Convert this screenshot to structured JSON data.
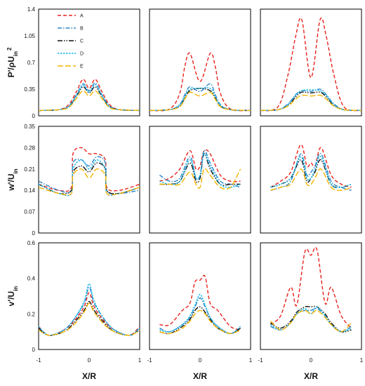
{
  "series_styles": [
    {
      "name": "A",
      "color": "#e8211b",
      "dash": "5,3"
    },
    {
      "name": "B",
      "color": "#2e86c8",
      "dash": "6,2,1.5,2"
    },
    {
      "name": "C",
      "color": "#111111",
      "dash": "7,2,1.5,2,1.5,2"
    },
    {
      "name": "D",
      "color": "#17b7e8",
      "dash": "2.5,1.5"
    },
    {
      "name": "E",
      "color": "#f5b400",
      "dash": "8,3"
    }
  ],
  "rows": [
    {
      "ylabel": "P'/ρU",
      "ylabel_sub": "in",
      "ylabel_sup": "2",
      "yticks": [
        "0",
        "0.35",
        "0.7",
        "1.05",
        "1.4"
      ],
      "ylim": [
        0,
        1.4
      ]
    },
    {
      "ylabel": "w'/U",
      "ylabel_sub": "in",
      "ylabel_sup": "",
      "yticks": [
        "0",
        "0.07",
        "0.14",
        "0.21",
        "0.28",
        "0.35"
      ],
      "ylim": [
        0,
        0.35
      ]
    },
    {
      "ylabel": "v'/U",
      "ylabel_sub": "in",
      "ylabel_sup": "",
      "yticks": [
        "0",
        "0.2",
        "0.4",
        "0.6"
      ],
      "ylim": [
        0,
        0.6
      ]
    }
  ],
  "xaxis": {
    "label": "X/R",
    "ticks": [
      "-1",
      "0",
      "1"
    ],
    "xlim": [
      -1,
      1
    ]
  },
  "chart_data": [
    {
      "type": "line",
      "row": 1,
      "col": 1,
      "xlim": [
        -1,
        1
      ],
      "ylim": [
        0,
        1.4
      ],
      "x": [
        -1,
        -0.6,
        -0.4,
        -0.25,
        -0.12,
        0,
        0.12,
        0.25,
        0.4,
        0.6,
        1
      ],
      "series": [
        {
          "name": "A",
          "values": [
            0.07,
            0.08,
            0.15,
            0.32,
            0.48,
            0.36,
            0.48,
            0.32,
            0.15,
            0.08,
            0.07
          ]
        },
        {
          "name": "B",
          "values": [
            0.07,
            0.08,
            0.13,
            0.28,
            0.42,
            0.33,
            0.43,
            0.28,
            0.13,
            0.08,
            0.07
          ]
        },
        {
          "name": "C",
          "values": [
            0.07,
            0.08,
            0.12,
            0.26,
            0.38,
            0.3,
            0.38,
            0.26,
            0.12,
            0.08,
            0.07
          ]
        },
        {
          "name": "D",
          "values": [
            0.07,
            0.08,
            0.12,
            0.27,
            0.4,
            0.31,
            0.41,
            0.27,
            0.12,
            0.08,
            0.07
          ]
        },
        {
          "name": "E",
          "values": [
            0.07,
            0.08,
            0.11,
            0.23,
            0.33,
            0.26,
            0.33,
            0.23,
            0.11,
            0.08,
            0.07
          ]
        }
      ]
    },
    {
      "type": "line",
      "row": 1,
      "col": 2,
      "xlim": [
        -1,
        1
      ],
      "ylim": [
        0,
        1.4
      ],
      "x": [
        -1,
        -0.6,
        -0.4,
        -0.3,
        -0.2,
        0,
        0.2,
        0.3,
        0.4,
        0.6,
        1
      ],
      "series": [
        {
          "name": "A",
          "values": [
            0.07,
            0.09,
            0.3,
            0.65,
            0.82,
            0.45,
            0.82,
            0.65,
            0.3,
            0.09,
            0.07
          ]
        },
        {
          "name": "B",
          "values": [
            0.07,
            0.08,
            0.15,
            0.28,
            0.38,
            0.32,
            0.42,
            0.28,
            0.15,
            0.08,
            0.07
          ]
        },
        {
          "name": "C",
          "values": [
            0.07,
            0.08,
            0.13,
            0.24,
            0.33,
            0.36,
            0.33,
            0.24,
            0.13,
            0.08,
            0.07
          ]
        },
        {
          "name": "D",
          "values": [
            0.07,
            0.08,
            0.14,
            0.26,
            0.35,
            0.36,
            0.36,
            0.26,
            0.14,
            0.08,
            0.07
          ]
        },
        {
          "name": "E",
          "values": [
            0.07,
            0.08,
            0.12,
            0.22,
            0.31,
            0.26,
            0.31,
            0.22,
            0.12,
            0.08,
            0.07
          ]
        }
      ]
    },
    {
      "type": "line",
      "row": 1,
      "col": 3,
      "xlim": [
        -1,
        1
      ],
      "ylim": [
        0,
        1.4
      ],
      "x": [
        -1,
        -0.65,
        -0.45,
        -0.3,
        -0.18,
        0,
        0.18,
        0.3,
        0.45,
        0.65,
        1
      ],
      "series": [
        {
          "name": "A",
          "values": [
            0.07,
            0.12,
            0.55,
            1.05,
            1.26,
            0.5,
            1.26,
            1.05,
            0.55,
            0.12,
            0.07
          ]
        },
        {
          "name": "B",
          "values": [
            0.07,
            0.08,
            0.16,
            0.28,
            0.33,
            0.32,
            0.35,
            0.28,
            0.16,
            0.08,
            0.07
          ]
        },
        {
          "name": "C",
          "values": [
            0.07,
            0.08,
            0.14,
            0.25,
            0.31,
            0.3,
            0.31,
            0.25,
            0.14,
            0.08,
            0.07
          ]
        },
        {
          "name": "D",
          "values": [
            0.07,
            0.08,
            0.15,
            0.27,
            0.33,
            0.34,
            0.33,
            0.27,
            0.15,
            0.08,
            0.07
          ]
        },
        {
          "name": "E",
          "values": [
            0.07,
            0.08,
            0.13,
            0.22,
            0.27,
            0.26,
            0.27,
            0.22,
            0.13,
            0.08,
            0.07
          ]
        }
      ]
    },
    {
      "type": "line",
      "row": 2,
      "col": 1,
      "xlim": [
        -1,
        1
      ],
      "ylim": [
        0,
        0.35
      ],
      "x": [
        -1,
        -0.6,
        -0.35,
        -0.32,
        -0.15,
        0,
        0.15,
        0.32,
        0.35,
        0.6,
        1
      ],
      "series": [
        {
          "name": "A",
          "values": [
            0.16,
            0.14,
            0.15,
            0.26,
            0.28,
            0.26,
            0.26,
            0.24,
            0.15,
            0.14,
            0.16
          ]
        },
        {
          "name": "B",
          "values": [
            0.17,
            0.14,
            0.14,
            0.23,
            0.24,
            0.22,
            0.25,
            0.23,
            0.14,
            0.13,
            0.14
          ]
        },
        {
          "name": "C",
          "values": [
            0.16,
            0.13,
            0.14,
            0.2,
            0.22,
            0.2,
            0.23,
            0.21,
            0.14,
            0.13,
            0.15
          ]
        },
        {
          "name": "D",
          "values": [
            0.16,
            0.13,
            0.13,
            0.21,
            0.24,
            0.21,
            0.24,
            0.21,
            0.13,
            0.13,
            0.15
          ]
        },
        {
          "name": "E",
          "values": [
            0.15,
            0.13,
            0.13,
            0.19,
            0.21,
            0.18,
            0.21,
            0.19,
            0.13,
            0.13,
            0.15
          ]
        }
      ]
    },
    {
      "type": "line",
      "row": 2,
      "col": 2,
      "xlim": [
        -1,
        1
      ],
      "ylim": [
        0,
        0.35
      ],
      "x": [
        -0.8,
        -0.6,
        -0.4,
        -0.2,
        -0.08,
        0,
        0.08,
        0.2,
        0.4,
        0.6,
        0.8
      ],
      "series": [
        {
          "name": "A",
          "values": [
            0.17,
            0.18,
            0.21,
            0.27,
            0.21,
            0.22,
            0.27,
            0.26,
            0.19,
            0.17,
            0.17
          ]
        },
        {
          "name": "B",
          "values": [
            0.19,
            0.17,
            0.18,
            0.25,
            0.18,
            0.19,
            0.27,
            0.23,
            0.17,
            0.16,
            0.15
          ]
        },
        {
          "name": "C",
          "values": [
            0.16,
            0.16,
            0.17,
            0.23,
            0.17,
            0.18,
            0.26,
            0.21,
            0.16,
            0.16,
            0.16
          ]
        },
        {
          "name": "D",
          "values": [
            0.17,
            0.16,
            0.17,
            0.24,
            0.18,
            0.19,
            0.26,
            0.22,
            0.16,
            0.15,
            0.16
          ]
        },
        {
          "name": "E",
          "values": [
            0.16,
            0.16,
            0.16,
            0.2,
            0.16,
            0.15,
            0.21,
            0.19,
            0.15,
            0.15,
            0.21
          ]
        }
      ]
    },
    {
      "type": "line",
      "row": 2,
      "col": 3,
      "xlim": [
        -1,
        1
      ],
      "ylim": [
        0,
        0.35
      ],
      "x": [
        -0.8,
        -0.6,
        -0.4,
        -0.2,
        -0.08,
        0,
        0.08,
        0.2,
        0.4,
        0.6,
        0.8
      ],
      "series": [
        {
          "name": "A",
          "values": [
            0.15,
            0.17,
            0.2,
            0.29,
            0.22,
            0.23,
            0.22,
            0.28,
            0.19,
            0.16,
            0.15
          ]
        },
        {
          "name": "B",
          "values": [
            0.14,
            0.15,
            0.17,
            0.26,
            0.19,
            0.2,
            0.22,
            0.26,
            0.17,
            0.15,
            0.14
          ]
        },
        {
          "name": "C",
          "values": [
            0.15,
            0.16,
            0.18,
            0.24,
            0.17,
            0.18,
            0.2,
            0.24,
            0.16,
            0.15,
            0.16
          ]
        },
        {
          "name": "D",
          "values": [
            0.15,
            0.16,
            0.18,
            0.25,
            0.18,
            0.18,
            0.21,
            0.25,
            0.16,
            0.15,
            0.16
          ]
        },
        {
          "name": "E",
          "values": [
            0.14,
            0.15,
            0.16,
            0.21,
            0.16,
            0.16,
            0.18,
            0.21,
            0.15,
            0.14,
            0.15
          ]
        }
      ]
    },
    {
      "type": "line",
      "row": 3,
      "col": 1,
      "xlim": [
        -1,
        1
      ],
      "ylim": [
        0,
        0.6
      ],
      "x": [
        -1,
        -0.8,
        -0.5,
        -0.3,
        -0.1,
        0,
        0.1,
        0.3,
        0.5,
        0.8,
        1
      ],
      "series": [
        {
          "name": "A",
          "values": [
            0.13,
            0.08,
            0.11,
            0.16,
            0.24,
            0.32,
            0.24,
            0.16,
            0.11,
            0.08,
            0.13
          ]
        },
        {
          "name": "B",
          "values": [
            0.12,
            0.08,
            0.11,
            0.17,
            0.26,
            0.35,
            0.26,
            0.17,
            0.11,
            0.08,
            0.12
          ]
        },
        {
          "name": "C",
          "values": [
            0.12,
            0.08,
            0.1,
            0.15,
            0.22,
            0.27,
            0.22,
            0.15,
            0.1,
            0.08,
            0.11
          ]
        },
        {
          "name": "D",
          "values": [
            0.13,
            0.08,
            0.11,
            0.17,
            0.27,
            0.37,
            0.27,
            0.17,
            0.11,
            0.08,
            0.12
          ]
        },
        {
          "name": "E",
          "values": [
            0.11,
            0.08,
            0.1,
            0.14,
            0.21,
            0.26,
            0.21,
            0.14,
            0.1,
            0.08,
            0.11
          ]
        }
      ]
    },
    {
      "type": "line",
      "row": 3,
      "col": 2,
      "xlim": [
        -1,
        1
      ],
      "ylim": [
        0,
        0.6
      ],
      "x": [
        -0.8,
        -0.6,
        -0.35,
        -0.2,
        -0.1,
        0,
        0.1,
        0.2,
        0.35,
        0.6,
        0.8
      ],
      "series": [
        {
          "name": "A",
          "values": [
            0.14,
            0.14,
            0.22,
            0.26,
            0.38,
            0.39,
            0.41,
            0.26,
            0.22,
            0.13,
            0.11
          ]
        },
        {
          "name": "B",
          "values": [
            0.12,
            0.1,
            0.14,
            0.18,
            0.24,
            0.29,
            0.24,
            0.18,
            0.13,
            0.09,
            0.12
          ]
        },
        {
          "name": "C",
          "values": [
            0.1,
            0.09,
            0.13,
            0.17,
            0.22,
            0.24,
            0.21,
            0.17,
            0.12,
            0.09,
            0.12
          ]
        },
        {
          "name": "D",
          "values": [
            0.11,
            0.1,
            0.14,
            0.19,
            0.25,
            0.31,
            0.25,
            0.18,
            0.13,
            0.09,
            0.13
          ]
        },
        {
          "name": "E",
          "values": [
            0.1,
            0.09,
            0.12,
            0.16,
            0.2,
            0.22,
            0.2,
            0.16,
            0.12,
            0.09,
            0.11
          ]
        }
      ]
    },
    {
      "type": "line",
      "row": 3,
      "col": 3,
      "xlim": [
        -1,
        1
      ],
      "ylim": [
        0,
        0.6
      ],
      "x": [
        -0.8,
        -0.6,
        -0.4,
        -0.28,
        -0.12,
        0,
        0.12,
        0.28,
        0.4,
        0.6,
        0.8
      ],
      "series": [
        {
          "name": "A",
          "values": [
            0.14,
            0.19,
            0.35,
            0.25,
            0.55,
            0.53,
            0.56,
            0.26,
            0.35,
            0.19,
            0.12
          ]
        },
        {
          "name": "B",
          "values": [
            0.13,
            0.11,
            0.15,
            0.2,
            0.22,
            0.22,
            0.23,
            0.19,
            0.14,
            0.1,
            0.13
          ]
        },
        {
          "name": "C",
          "values": [
            0.15,
            0.12,
            0.16,
            0.21,
            0.24,
            0.24,
            0.24,
            0.2,
            0.15,
            0.1,
            0.11
          ]
        },
        {
          "name": "D",
          "values": [
            0.14,
            0.11,
            0.15,
            0.2,
            0.23,
            0.2,
            0.24,
            0.19,
            0.14,
            0.1,
            0.12
          ]
        },
        {
          "name": "E",
          "values": [
            0.16,
            0.11,
            0.15,
            0.2,
            0.22,
            0.2,
            0.22,
            0.18,
            0.14,
            0.1,
            0.15
          ]
        }
      ]
    }
  ]
}
